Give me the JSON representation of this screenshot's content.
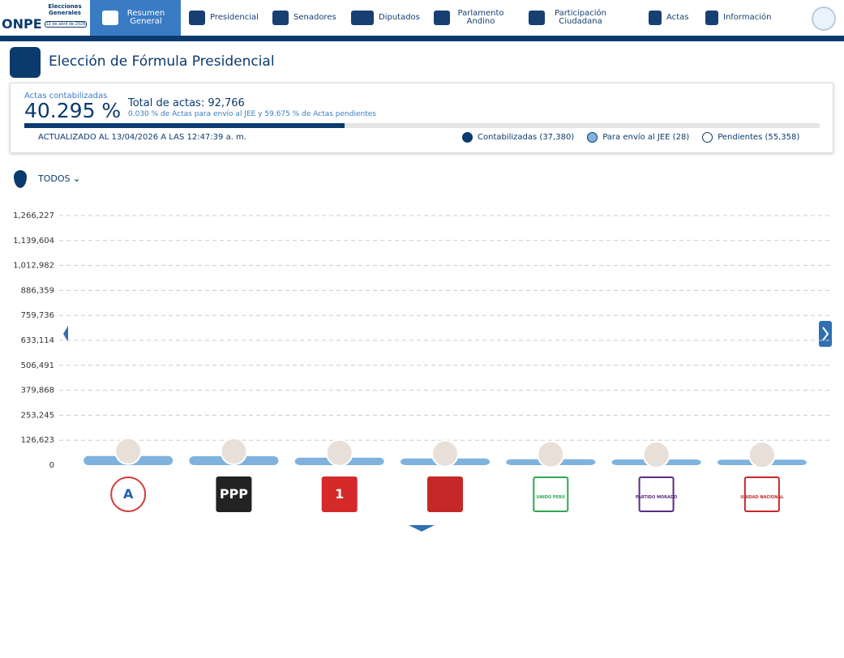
{
  "header": {
    "logo": "ONPE",
    "event": "Elecciones Generales",
    "date": "12 de abril de 2026",
    "nav": [
      "Resumen General",
      "Presidencial",
      "Senadores",
      "Diputados",
      "Parlamento Andino",
      "Participación Ciudadana",
      "Actas",
      "Información"
    ]
  },
  "page_title": "Elección de Fórmula Presidencial",
  "summary": {
    "caption": "Actas contabilizadas",
    "progress": {
      "value": 40.295,
      "label": "40.295 %"
    },
    "total": "Total de actas: 92,766",
    "detail": "0.030 % de Actas para envío al JEE y 59.675 % de Actas pendientes",
    "updated": "ACTUALIZADO AL 13/04/2026 A LAS 12:47:39 a. m.",
    "legend": [
      "Contabilizadas (37,380)",
      "Para envío al JEE (28)",
      "Pendientes (55,358)"
    ]
  },
  "filter": "TODOS",
  "chart": {
    "type": "bar",
    "categories": [
      null,
      null,
      null,
      null,
      null,
      null,
      null
    ],
    "logos": [
      "A",
      "PPP",
      "1",
      null,
      "UNIDO PERÚ",
      "PARTIDO MORADO",
      "UNIDAD NACIONAL"
    ],
    "values": [
      46000,
      45000,
      38000,
      34000,
      30000,
      29000,
      28000
    ],
    "color": "#7fb3de",
    "ylim": [
      0,
      1266227
    ],
    "yticks": [
      0,
      {
        "value": 126623,
        "label": "126,623"
      },
      {
        "value": 253245,
        "label": "253,245"
      },
      {
        "value": 379868,
        "label": "379,868"
      },
      {
        "value": 506491,
        "label": "506,491"
      },
      {
        "value": 633114,
        "label": "633,114"
      },
      {
        "value": 759736,
        "label": "759,736"
      },
      {
        "value": 886359,
        "label": "886,359"
      },
      {
        "value": 1012982,
        "label": "1,012,982"
      },
      {
        "value": 1139604,
        "label": "1,139,604"
      },
      {
        "value": 1266227,
        "label": "1,266,227"
      }
    ],
    "grid": true
  }
}
